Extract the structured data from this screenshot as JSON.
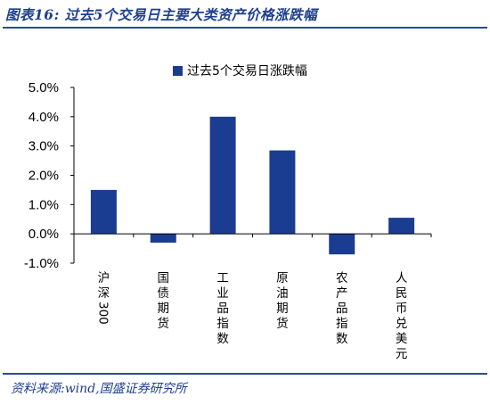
{
  "figure": {
    "title": "图表16:  过去5个交易日主要大类资产价格涨跌幅",
    "source": "资料来源:wind,国盛证券研究所"
  },
  "chart_data": {
    "type": "bar",
    "categories": [
      "沪深300",
      "国债期货",
      "工业品指数",
      "原油期货",
      "农产品指数",
      "人民币兑美元"
    ],
    "series": [
      {
        "name": "过去5个交易日涨跌幅",
        "values": [
          1.5,
          -0.3,
          4.0,
          2.85,
          -0.7,
          0.55
        ]
      }
    ],
    "yticks": [
      "5.0%",
      "4.0%",
      "3.0%",
      "2.0%",
      "1.0%",
      "0.0%",
      "-1.0%"
    ],
    "ylim": [
      -1.0,
      5.0
    ],
    "grid": false,
    "legend": "top-center",
    "bar_color": "#1b3d91"
  }
}
